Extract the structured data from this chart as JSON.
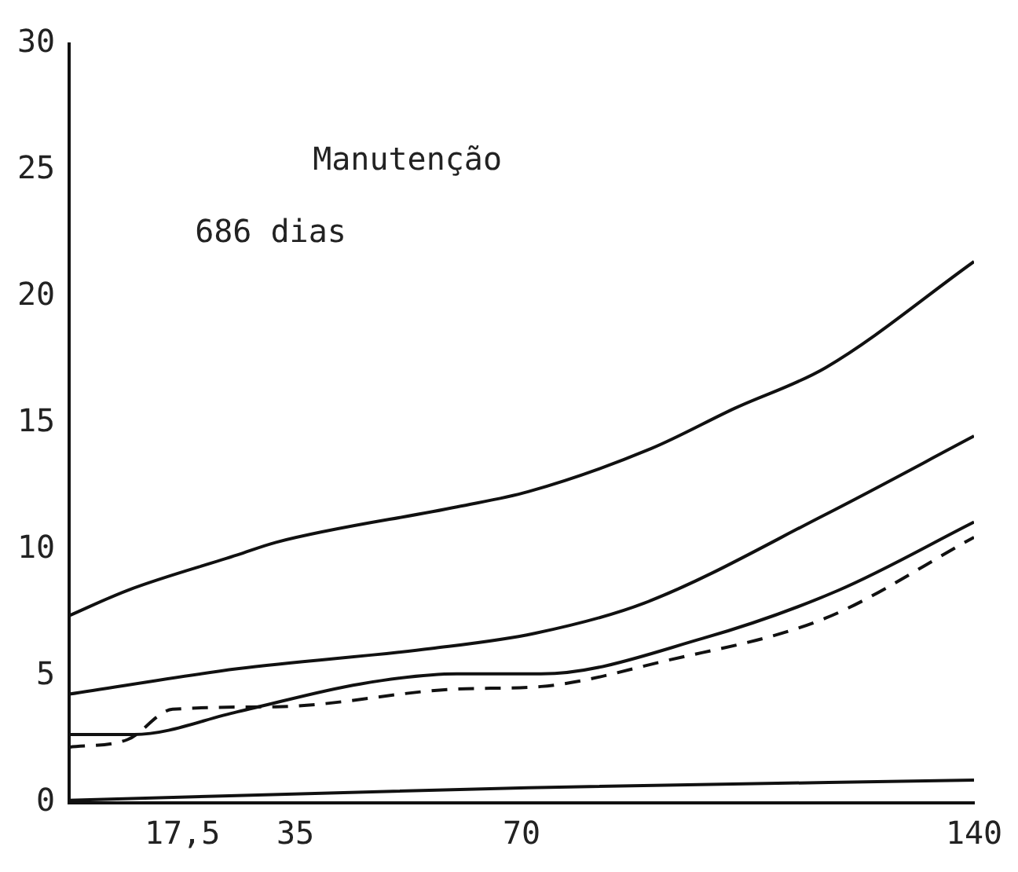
{
  "chart_data": {
    "type": "line",
    "annotations": [
      "Manutenção",
      "686 dias"
    ],
    "grid": false,
    "marker": "none",
    "xlim": [
      0,
      140
    ],
    "xticks": [
      {
        "value": 17.5,
        "label": "17,5"
      },
      35,
      70,
      140
    ],
    "ylim": [
      0,
      30
    ],
    "yticks": [
      0,
      5,
      10,
      15,
      20,
      25,
      30
    ],
    "series": [
      {
        "color": "#111111",
        "line_style": "solid",
        "x": [
          0,
          9,
          26,
          32,
          60,
          71,
          90,
          103,
          117,
          140
        ],
        "values": [
          7.4,
          8.4,
          9.8,
          10.3,
          11.7,
          12.3,
          14.0,
          15.6,
          17.2,
          21.4
        ]
      },
      {
        "color": "#111111",
        "line_style": "solid",
        "x": [
          0,
          26,
          56,
          72,
          89,
          117,
          140
        ],
        "values": [
          4.3,
          5.3,
          6.1,
          6.7,
          7.9,
          11.4,
          14.5
        ]
      },
      {
        "color": "#111111",
        "line_style": "solid",
        "x": [
          0,
          10,
          26,
          45,
          60,
          73,
          98,
          119,
          140
        ],
        "values": [
          2.7,
          2.7,
          3.6,
          4.7,
          5.1,
          5.1,
          6.5,
          8.4,
          11.1
        ]
      },
      {
        "color": "#111111",
        "line_style": "dashed",
        "x": [
          0,
          9,
          16,
          32,
          60,
          73,
          92,
          117,
          140
        ],
        "values": [
          2.2,
          2.5,
          3.7,
          3.8,
          4.5,
          4.6,
          5.6,
          7.3,
          10.5
        ]
      },
      {
        "color": "#111111",
        "line_style": "solid",
        "x": [
          0,
          71,
          140
        ],
        "values": [
          0.1,
          0.6,
          0.9
        ]
      }
    ]
  }
}
